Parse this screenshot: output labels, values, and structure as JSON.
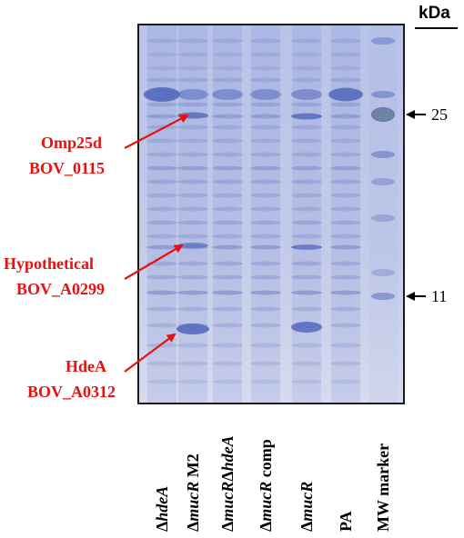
{
  "figure": {
    "unit_label": "kDa",
    "gel_color": "#bdc6e6",
    "band_color": "#5b6fc0",
    "annotation_color": "#e8110f",
    "annotations": [
      {
        "name": "Omp25d",
        "locus": "BOV_0115"
      },
      {
        "name": "Hypothetical",
        "locus": "BOV_A0299"
      },
      {
        "name": "HdeA",
        "locus": "BOV_A0312"
      }
    ],
    "markers": [
      {
        "label": "25"
      },
      {
        "label": "11"
      }
    ],
    "lanes": [
      {
        "prefix": "Δ",
        "italic": "hdeA",
        "suffix": ""
      },
      {
        "prefix": "Δ",
        "italic": "mucR",
        "suffix": " M2"
      },
      {
        "prefix": "Δ",
        "italic": "mucR",
        "mid": "Δ",
        "italic2": "hdeA",
        "suffix": ""
      },
      {
        "prefix": "Δ",
        "italic": "mucR",
        "suffix": " comp"
      },
      {
        "prefix": "Δ",
        "italic": "mucR",
        "suffix": ""
      },
      {
        "prefix": "",
        "italic": "",
        "suffix": "PA"
      },
      {
        "prefix": "",
        "italic": "",
        "suffix": "MW marker"
      }
    ]
  }
}
